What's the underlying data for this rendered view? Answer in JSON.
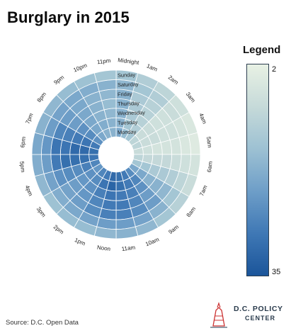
{
  "chart_data": {
    "type": "radial-heatmap",
    "title": "Burglary in 2015",
    "hours": [
      "Midnight",
      "1am",
      "2am",
      "3am",
      "4am",
      "5am",
      "6am",
      "7am",
      "8am",
      "9am",
      "10am",
      "11am",
      "Noon",
      "1pm",
      "2pm",
      "3pm",
      "4pm",
      "5pm",
      "6pm",
      "7pm",
      "8pm",
      "9pm",
      "10pm",
      "11pm"
    ],
    "days": [
      "Monday",
      "Tuesday",
      "Wednesday",
      "Thursday",
      "Friday",
      "Saturday",
      "Sunday"
    ],
    "values": [
      [
        20,
        16,
        14,
        10,
        10,
        8,
        10,
        14,
        20,
        25,
        28,
        30,
        31,
        28,
        26,
        23,
        26,
        29,
        30,
        28,
        24,
        20,
        18,
        18
      ],
      [
        18,
        14,
        12,
        8,
        8,
        7,
        9,
        14,
        20,
        26,
        28,
        30,
        32,
        29,
        25,
        24,
        27,
        30,
        31,
        29,
        25,
        20,
        19,
        18
      ],
      [
        18,
        13,
        11,
        8,
        8,
        6,
        9,
        13,
        18,
        24,
        27,
        28,
        29,
        27,
        24,
        23,
        25,
        30,
        31,
        28,
        24,
        20,
        18,
        17
      ],
      [
        18,
        13,
        11,
        7,
        7,
        6,
        9,
        13,
        18,
        22,
        26,
        28,
        28,
        26,
        23,
        22,
        25,
        30,
        29,
        27,
        22,
        20,
        18,
        16
      ],
      [
        18,
        13,
        11,
        7,
        7,
        6,
        8,
        12,
        17,
        22,
        25,
        27,
        27,
        25,
        22,
        21,
        24,
        28,
        29,
        26,
        22,
        20,
        18,
        17
      ],
      [
        17,
        14,
        12,
        8,
        6,
        5,
        7,
        10,
        14,
        18,
        21,
        22,
        22,
        21,
        20,
        19,
        21,
        22,
        23,
        22,
        21,
        20,
        19,
        18
      ],
      [
        14,
        12,
        10,
        7,
        5,
        4,
        6,
        8,
        11,
        14,
        17,
        18,
        17,
        16,
        16,
        15,
        17,
        19,
        20,
        18,
        17,
        16,
        15,
        14
      ]
    ],
    "legend": {
      "title": "Legend",
      "min": 2,
      "max": 35,
      "min_color": "#e8f1e4",
      "max_color": "#1b559a"
    }
  },
  "source": "Source: D.C. Open Data",
  "logo": {
    "line1": "D.C. POLICY",
    "line2": "CENTER"
  }
}
